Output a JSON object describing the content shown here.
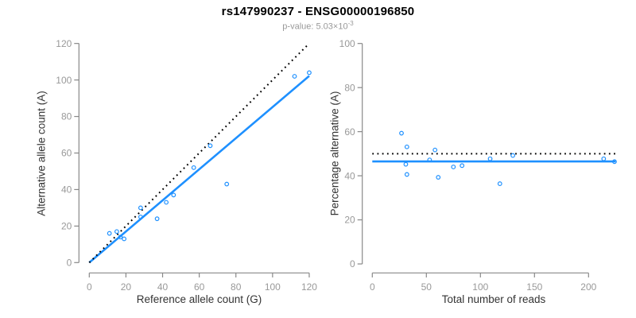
{
  "header": {
    "title": "rs147990237 - ENSG00000196850",
    "subtitle_text": "p-value: 5.03×10",
    "subtitle_exponent": "-3"
  },
  "colors": {
    "accent_blue": "#1E90FF",
    "reference_black": "#000000",
    "axis_gray": "#888888",
    "tick_label_gray": "#999999"
  },
  "chart_data": [
    {
      "type": "scatter",
      "xlabel": "Reference allele count (G)",
      "ylabel": "Alternative allele count (A)",
      "xlim": [
        0,
        120
      ],
      "ylim": [
        0,
        120
      ],
      "xticks": [
        0,
        20,
        40,
        60,
        80,
        100,
        120
      ],
      "yticks": [
        0,
        20,
        40,
        60,
        80,
        100,
        120
      ],
      "grid": false,
      "legend": "none",
      "point_style": "open-circle",
      "point_color": "#1E90FF",
      "points": [
        [
          11,
          16
        ],
        [
          15,
          17
        ],
        [
          17,
          14
        ],
        [
          19,
          13
        ],
        [
          28,
          25
        ],
        [
          28,
          30
        ],
        [
          37,
          24
        ],
        [
          42,
          33
        ],
        [
          46,
          37
        ],
        [
          57,
          52
        ],
        [
          66,
          64
        ],
        [
          75,
          43
        ],
        [
          112,
          102
        ],
        [
          120,
          104
        ]
      ],
      "lines": [
        {
          "name": "fit-line",
          "style": "solid",
          "color": "#1E90FF",
          "x1": 0,
          "y1": 0,
          "x2": 120,
          "y2": 102.2
        },
        {
          "name": "identity-line",
          "style": "dotted",
          "color": "#000000",
          "x1": 0,
          "y1": 0,
          "x2": 120,
          "y2": 120
        }
      ]
    },
    {
      "type": "scatter",
      "xlabel": "Total number of reads",
      "ylabel": "Percentage alternative (A)",
      "xlim": [
        0,
        225
      ],
      "ylim": [
        0,
        100
      ],
      "xticks": [
        0,
        50,
        100,
        150,
        200
      ],
      "yticks": [
        0,
        20,
        40,
        60,
        80,
        100
      ],
      "grid": false,
      "legend": "none",
      "point_style": "open-circle",
      "point_color": "#1E90FF",
      "points": [
        [
          27,
          59.3
        ],
        [
          32,
          53.1
        ],
        [
          31,
          45.2
        ],
        [
          32,
          40.6
        ],
        [
          53,
          47.2
        ],
        [
          58,
          51.7
        ],
        [
          61,
          39.3
        ],
        [
          75,
          44.0
        ],
        [
          83,
          44.6
        ],
        [
          109,
          47.7
        ],
        [
          130,
          49.2
        ],
        [
          118,
          36.4
        ],
        [
          214,
          47.7
        ],
        [
          224,
          46.4
        ]
      ],
      "lines": [
        {
          "name": "mean-percentage-line",
          "style": "solid",
          "color": "#1E90FF",
          "x1": 0,
          "y1": 46.5,
          "x2": 225,
          "y2": 46.5
        },
        {
          "name": "expected-50-percent-line",
          "style": "dotted",
          "color": "#000000",
          "x1": 0,
          "y1": 50,
          "x2": 225,
          "y2": 50
        }
      ]
    }
  ]
}
